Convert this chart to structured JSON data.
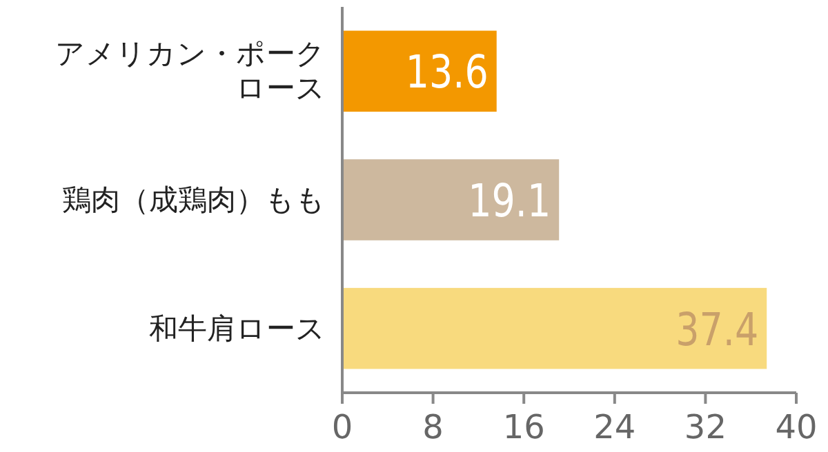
{
  "chart_data": {
    "type": "bar",
    "orientation": "horizontal",
    "categories": [
      "アメリカン・ポークロース",
      "鶏肉（成鶏肉）もも",
      "和牛肩ロース"
    ],
    "values": [
      13.6,
      19.1,
      37.4
    ],
    "colors": [
      "#f39800",
      "#cdb89e",
      "#f8da7e"
    ],
    "xlim": [
      0,
      40
    ],
    "xticks": [
      0,
      8,
      16,
      24,
      32,
      40
    ],
    "data_labels": true,
    "grid": false
  }
}
